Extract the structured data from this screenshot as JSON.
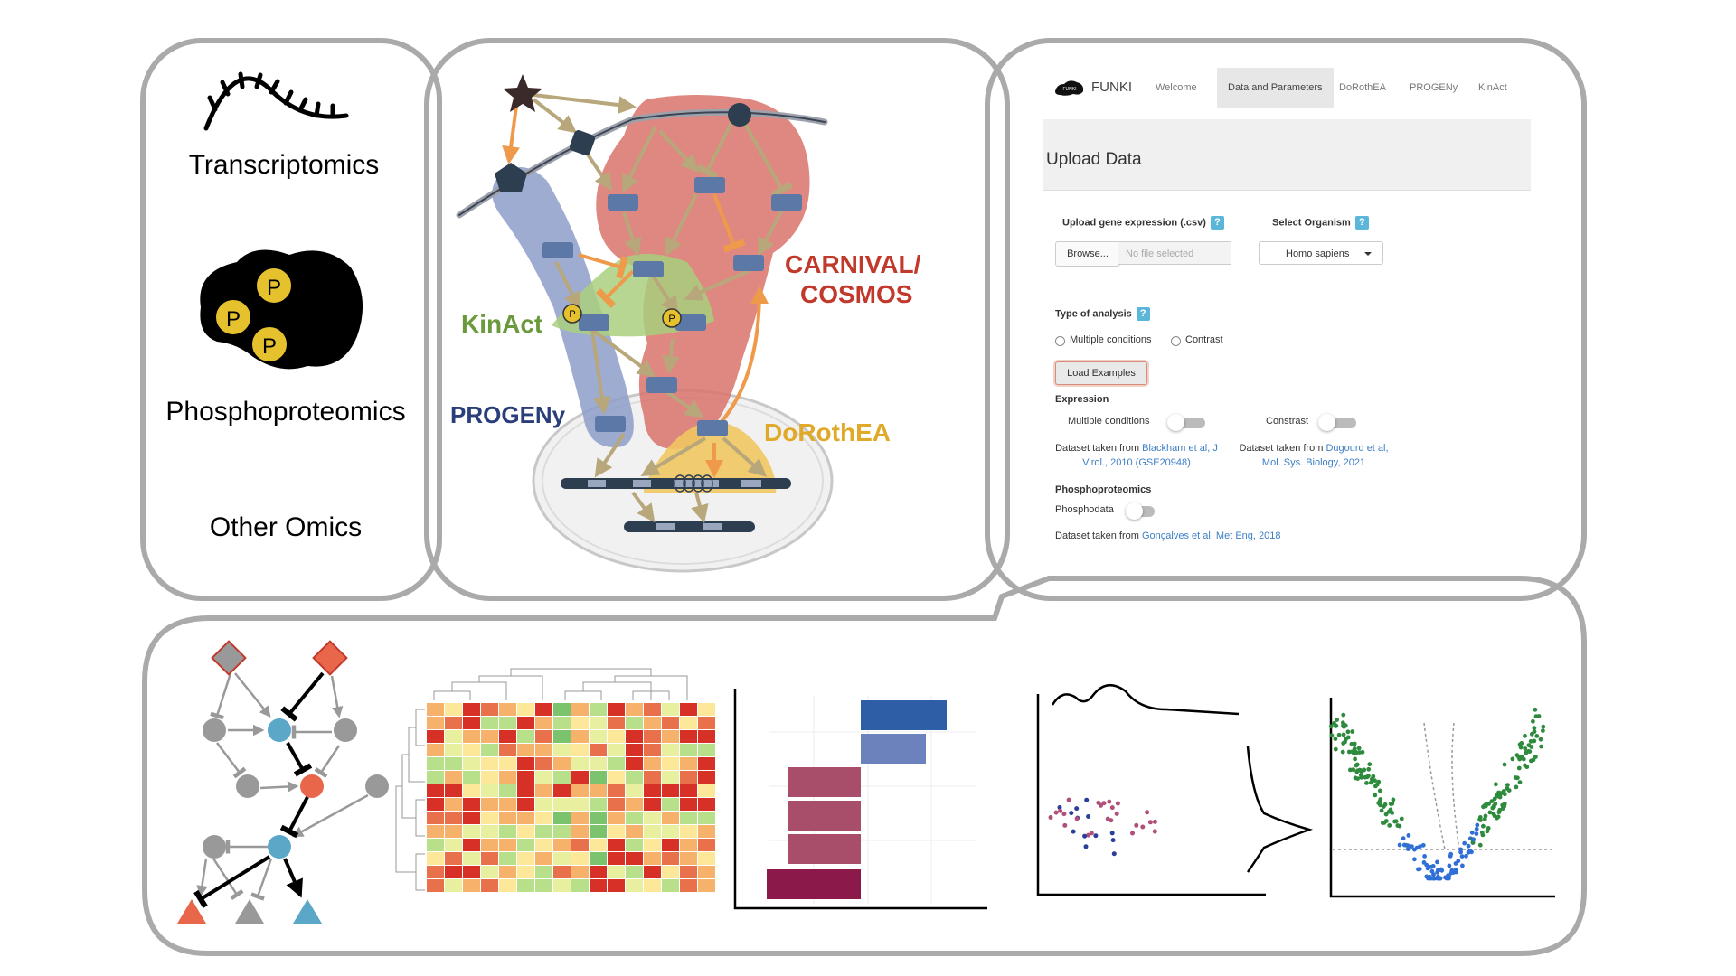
{
  "omics": {
    "transcriptomics": "Transcriptomics",
    "phospho_badge": "P",
    "phosphoproteomics": "Phosphoproteomics",
    "other": "Other Omics"
  },
  "pathway": {
    "carnival_line1": "CARNIVAL/",
    "carnival_line2": "COSMOS",
    "kinact": "KinAct",
    "progeny": "PROGENy",
    "dorothea": "DoRothEA",
    "phospho_badge": "P"
  },
  "colors": {
    "panel_border": "#aaaaaa",
    "carnival": "#c0392b",
    "carnival_fill": "#d9736b",
    "kinact": "#6b9a3c",
    "kinact_fill": "#a9cf7e",
    "progeny": "#2a3f7a",
    "progeny_fill": "#8e9ec9",
    "dorothea": "#e0a92a",
    "dorothea_fill": "#f1c660",
    "node": "#5b78a6",
    "arrow": "#b8a77a",
    "arrow_orange": "#ef9a4a"
  },
  "app": {
    "brand": "FUNKI",
    "logo_text": "FUNKI",
    "tabs": [
      "Welcome",
      "Data and Parameters",
      "DoRothEA",
      "PROGENy",
      "KinAct"
    ],
    "active_tab": "Data and Parameters",
    "section_title": "Upload Data",
    "upload_label": "Upload gene expression (.csv)",
    "organism_label": "Select Organism",
    "help_glyph": "?",
    "browse_label": "Browse...",
    "file_placeholder": "No file selected",
    "organism_value": "Homo sapiens",
    "analysis_label": "Type of analysis",
    "radio_multiple": "Multiple conditions",
    "radio_contrast": "Contrast",
    "load_examples": "Load Examples",
    "expression_heading": "Expression",
    "toggle_multiple": "Multiple conditions",
    "toggle_contrast": "Constrast",
    "dataset_prefix": "Dataset taken from",
    "dataset1_link": "Blackham et al, J Virol., 2010 (GSE20948)",
    "dataset2_link": "Dugourd et al, Mol. Sys. Biology, 2021",
    "phospho_heading": "Phosphoproteomics",
    "phospho_toggle": "Phosphodata",
    "dataset3_link": "Gonçalves et al, Met Eng, 2018"
  }
}
